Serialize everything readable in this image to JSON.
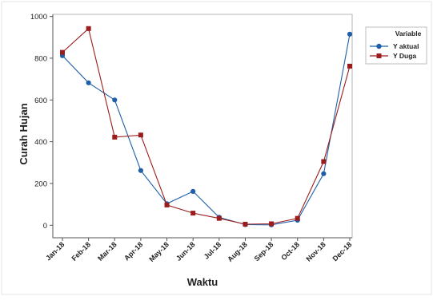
{
  "chart_data": {
    "type": "line",
    "xlabel": "Waktu",
    "ylabel": "Curah Hujan",
    "categories": [
      "Jan-18",
      "Feb-18",
      "Mar-18",
      "Apr-18",
      "May-18",
      "Jun-18",
      "Jul-18",
      "Aug-18",
      "Sep-18",
      "Oct-18",
      "Nov-18",
      "Dec-18"
    ],
    "ylim": [
      -60,
      1010
    ],
    "yticks": [
      0,
      200,
      400,
      600,
      800,
      1000
    ],
    "grid": false,
    "legend": {
      "title": "Variable",
      "placement": "top-right-outside"
    },
    "series": [
      {
        "name": "Y aktual",
        "color": "#1f5fa8",
        "marker": "circle",
        "values": [
          812,
          682,
          600,
          262,
          103,
          162,
          38,
          3,
          2,
          24,
          247,
          915
        ]
      },
      {
        "name": "Y Duga",
        "color": "#9b1c1c",
        "marker": "square",
        "values": [
          828,
          942,
          422,
          432,
          97,
          58,
          33,
          5,
          7,
          33,
          305,
          762
        ]
      }
    ]
  }
}
